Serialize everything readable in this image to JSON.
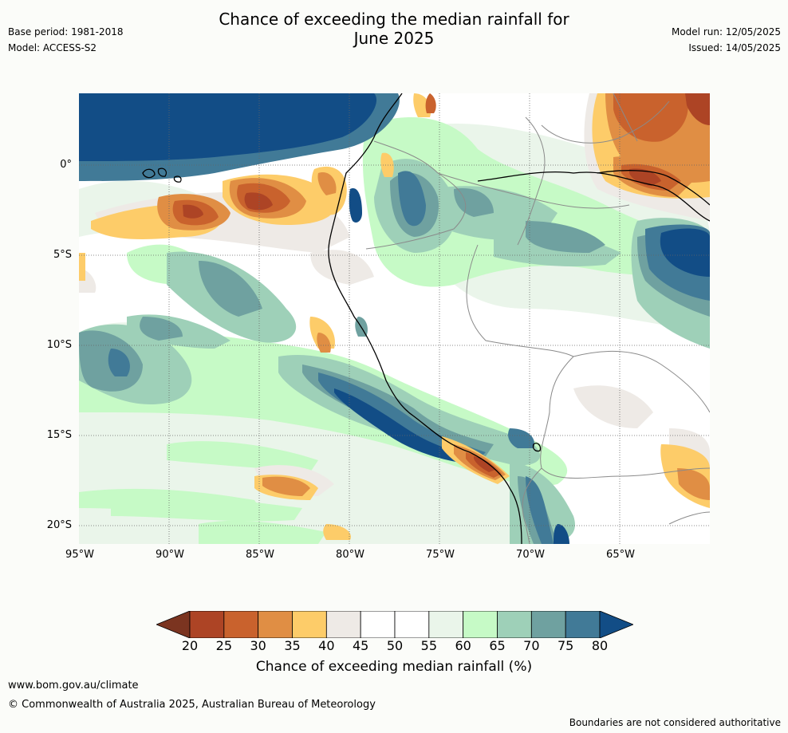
{
  "title": {
    "line1": "Chance of exceeding the median rainfall for",
    "line2": "June 2025"
  },
  "meta_left": {
    "base_period": "Base period: 1981-2018",
    "model": "Model: ACCESS-S2"
  },
  "meta_right": {
    "model_run": "Model run: 12/05/2025",
    "issued": "Issued: 14/05/2025"
  },
  "map": {
    "lat_labels": [
      "0°",
      "5°S",
      "10°S",
      "15°S",
      "20°S"
    ],
    "lon_labels": [
      "95°W",
      "90°W",
      "85°W",
      "80°W",
      "75°W",
      "70°W",
      "65°W"
    ]
  },
  "colorbar": {
    "title": "Chance of exceeding median rainfall (%)",
    "labels": [
      "20",
      "25",
      "30",
      "35",
      "40",
      "45",
      "50",
      "55",
      "60",
      "65",
      "70",
      "75",
      "80"
    ],
    "colors": [
      "#7b3420",
      "#ad4425",
      "#c9622d",
      "#e08e44",
      "#fdcc69",
      "#eeeae6",
      "#ffffff",
      "#ffffff",
      "#eaf5ea",
      "#c6fac6",
      "#9ed0b8",
      "#6fa1a0",
      "#417a97",
      "#124d86"
    ]
  },
  "footer": {
    "url": "www.bom.gov.au/climate",
    "copyright": "© Commonwealth of Australia 2025, Australian Bureau of Meteorology",
    "disclaimer": "Boundaries are not considered authoritative"
  }
}
